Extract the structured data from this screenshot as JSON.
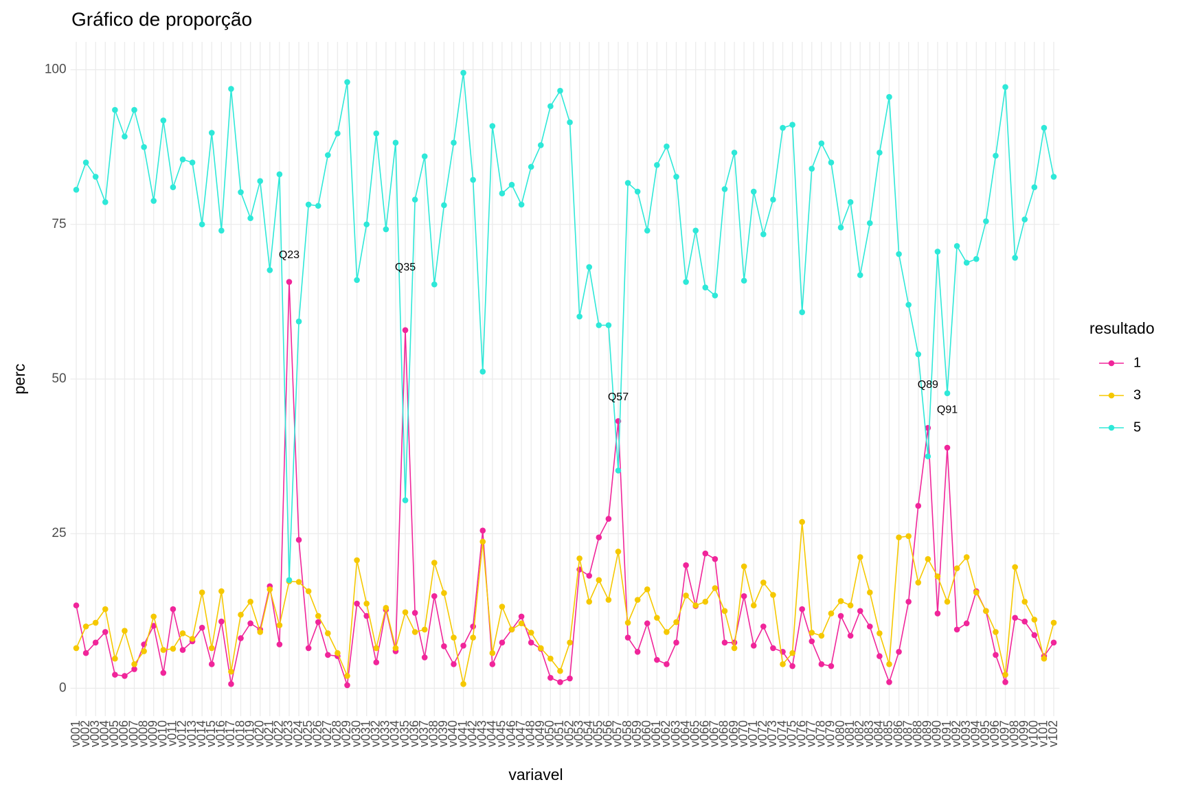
{
  "chart_data": {
    "type": "line",
    "title": "Gráfico de proporção",
    "x_label": "variavel",
    "y_label": "perc",
    "legend_title": "resultado",
    "legend_position": "right",
    "grid": true,
    "categories": [
      "v001",
      "v002",
      "v003",
      "v004",
      "v005",
      "v006",
      "v007",
      "v008",
      "v009",
      "v010",
      "v011",
      "v012",
      "v013",
      "v014",
      "v015",
      "v016",
      "v017",
      "v018",
      "v019",
      "v020",
      "v021",
      "v022",
      "v023",
      "v024",
      "v025",
      "v026",
      "v027",
      "v028",
      "v029",
      "v030",
      "v031",
      "v032",
      "v033",
      "v034",
      "v035",
      "v036",
      "v037",
      "v038",
      "v039",
      "v040",
      "v041",
      "v042",
      "v043",
      "v044",
      "v045",
      "v046",
      "v047",
      "v048",
      "v049",
      "v050",
      "v051",
      "v052",
      "v053",
      "v054",
      "v055",
      "v056",
      "v057",
      "v058",
      "v059",
      "v060",
      "v061",
      "v062",
      "v063",
      "v064",
      "v065",
      "v066",
      "v067",
      "v068",
      "v069",
      "v070",
      "v071",
      "v072",
      "v073",
      "v074",
      "v075",
      "v076",
      "v077",
      "v078",
      "v079",
      "v080",
      "v081",
      "v082",
      "v083",
      "v084",
      "v085",
      "v086",
      "v087",
      "v088",
      "v089",
      "v090",
      "v091",
      "v092",
      "v093",
      "v094",
      "v095",
      "v096",
      "v097",
      "v098",
      "v099",
      "v100",
      "v101",
      "v102"
    ],
    "ylim": [
      -4.5,
      104.5
    ],
    "yticks": [
      0,
      25,
      50,
      75,
      100
    ],
    "series": [
      {
        "name": "1",
        "color": "#f0259a",
        "values": [
          13.4,
          5.7,
          7.4,
          9.1,
          2.2,
          2,
          3.1,
          7.1,
          10.1,
          2.5,
          12.8,
          6.2,
          7.6,
          9.8,
          3.9,
          10.8,
          0.7,
          8.1,
          10.5,
          9.5,
          16.5,
          7.1,
          65.7,
          24,
          6.5,
          10.7,
          5.4,
          5.2,
          0.5,
          13.7,
          11.7,
          4.2,
          12.7,
          6,
          57.9,
          12.2,
          5,
          14.9,
          6.8,
          3.9,
          6.9,
          10,
          25.5,
          3.9,
          7.4,
          9.5,
          11.6,
          7.4,
          6.4,
          1.7,
          1,
          1.6,
          19.2,
          18.2,
          24.4,
          27.4,
          43.2,
          8.2,
          5.9,
          10.5,
          4.6,
          3.9,
          7.4,
          19.9,
          13.3,
          21.8,
          20.9,
          7.4,
          7.4,
          14.9,
          6.9,
          10,
          6.5,
          5.9,
          3.6,
          12.8,
          7.6,
          3.9,
          3.6,
          11.7,
          8.5,
          12.5,
          10,
          5.2,
          1,
          5.9,
          14,
          29.5,
          42.1,
          12.1,
          38.9,
          9.5,
          10.5,
          15.7,
          12.5,
          5.4,
          1,
          11.4,
          10.8,
          8.6,
          5.2,
          7.4
        ]
      },
      {
        "name": "3",
        "color": "#f5c800",
        "values": [
          6.5,
          10,
          10.6,
          12.8,
          4.8,
          9.3,
          3.9,
          6,
          11.6,
          6.2,
          6.4,
          8.9,
          8,
          15.5,
          6.5,
          15.7,
          2.7,
          11.9,
          14,
          9.1,
          16,
          10.2,
          17.3,
          17.2,
          15.7,
          11.7,
          8.9,
          5.7,
          2,
          20.7,
          13.7,
          6.5,
          13,
          6.5,
          12.3,
          9.1,
          9.5,
          20.3,
          15.4,
          8.2,
          0.7,
          8.2,
          23.7,
          5.7,
          13.2,
          9.5,
          10.5,
          9,
          6.5,
          4.8,
          2.8,
          7.4,
          21,
          14,
          17.5,
          14.3,
          22.1,
          10.6,
          14.3,
          16,
          11.4,
          9.1,
          10.7,
          15,
          13.4,
          14,
          16.2,
          12.5,
          6.5,
          19.7,
          13.4,
          17.1,
          15.1,
          3.9,
          5.7,
          26.9,
          9,
          8.5,
          12.1,
          14.1,
          13.4,
          21.2,
          15.5,
          8.9,
          3.9,
          24.4,
          24.6,
          17.1,
          20.9,
          18.1,
          14,
          19.4,
          21.2,
          15.5,
          12.5,
          9.1,
          2.2,
          19.6,
          14,
          11.1,
          4.8,
          10.6
        ]
      },
      {
        "name": "5",
        "color": "#2ee8d8",
        "values": [
          80.6,
          85,
          82.7,
          78.6,
          93.5,
          89.2,
          93.5,
          87.5,
          78.8,
          91.8,
          81,
          85.5,
          85,
          75,
          89.8,
          74,
          96.9,
          80.2,
          76,
          82,
          67.6,
          83.1,
          17.5,
          59.3,
          78.2,
          78,
          86.2,
          89.7,
          98,
          66,
          75,
          89.7,
          74.2,
          88.2,
          30.4,
          79,
          86,
          65.3,
          78.1,
          88.2,
          99.5,
          82.2,
          51.2,
          90.9,
          80,
          81.4,
          78.2,
          84.3,
          87.8,
          94.1,
          96.6,
          91.5,
          60.1,
          68.1,
          58.7,
          58.7,
          35.2,
          81.7,
          80.3,
          74,
          84.6,
          87.6,
          82.7,
          65.7,
          74,
          64.8,
          63.5,
          80.7,
          86.6,
          65.9,
          80.3,
          73.4,
          79,
          90.6,
          91.1,
          60.8,
          84,
          88.1,
          85,
          74.5,
          78.6,
          66.8,
          75.2,
          86.6,
          95.6,
          70.2,
          62,
          54,
          37.5,
          70.6,
          47.7,
          71.5,
          68.8,
          69.4,
          75.5,
          86.1,
          97.2,
          69.6,
          75.8,
          81,
          90.6,
          82.7
        ]
      }
    ],
    "annotations": [
      {
        "text": "Q23",
        "x": "v023",
        "y": 70
      },
      {
        "text": "Q35",
        "x": "v035",
        "y": 68
      },
      {
        "text": "Q57",
        "x": "v057",
        "y": 47
      },
      {
        "text": "Q89",
        "x": "v089",
        "y": 49
      },
      {
        "text": "Q91",
        "x": "v091",
        "y": 45
      }
    ]
  }
}
